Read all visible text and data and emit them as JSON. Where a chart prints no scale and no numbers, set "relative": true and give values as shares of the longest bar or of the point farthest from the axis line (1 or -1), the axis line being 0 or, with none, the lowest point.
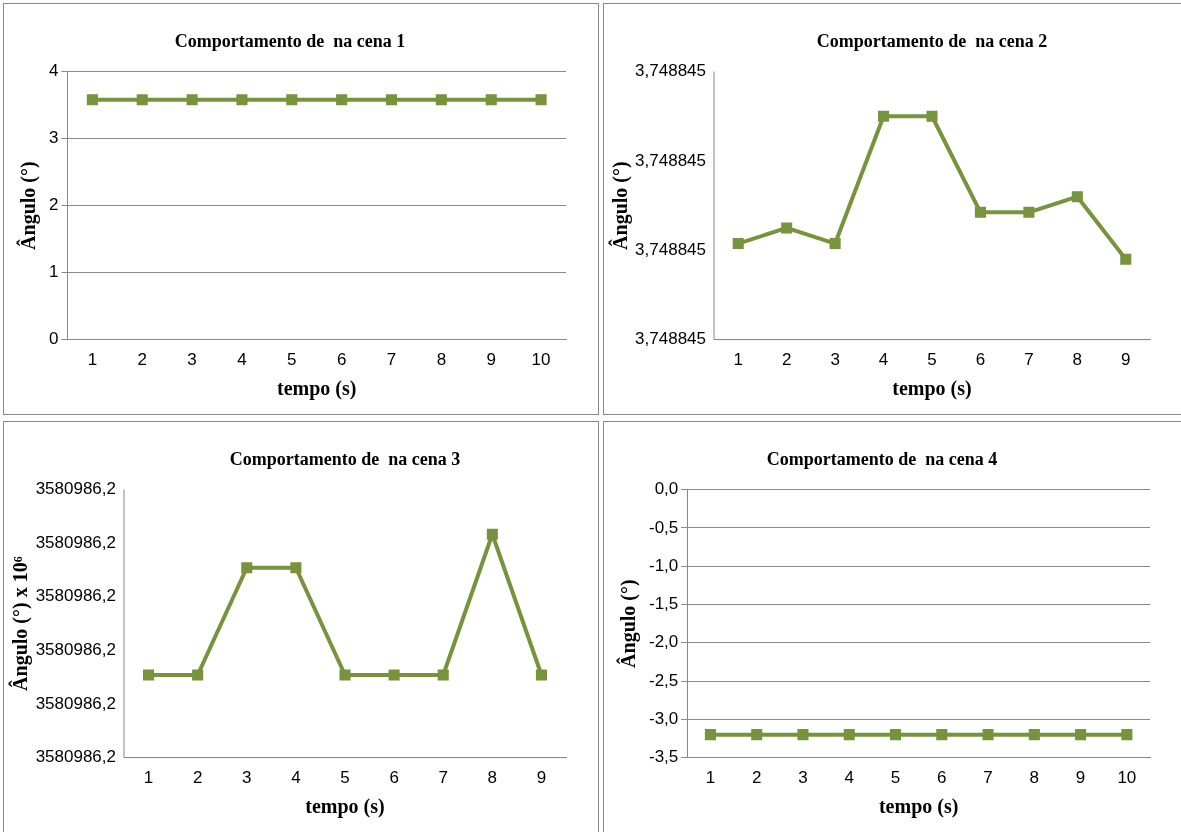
{
  "chart_data": [
    {
      "type": "line",
      "title": "Comportamento de  na cena 1",
      "xlabel": "tempo (s)",
      "ylabel": "Ângulo (°)",
      "categories": [
        "1",
        "2",
        "3",
        "4",
        "5",
        "6",
        "7",
        "8",
        "9",
        "10"
      ],
      "series": [
        {
          "color": "#77933c",
          "values": [
            3.58,
            3.58,
            3.58,
            3.58,
            3.58,
            3.58,
            3.58,
            3.58,
            3.58,
            3.58
          ]
        }
      ],
      "ylim": [
        0,
        4
      ],
      "yticks": [
        0,
        1,
        2,
        3,
        4
      ],
      "grid": "y",
      "marker": "square",
      "line_style": "solid",
      "legend": false
    },
    {
      "type": "line",
      "title": "Comportamento de  na cena 2",
      "xlabel": "tempo (s)",
      "ylabel": "Ângulo (°)",
      "categories": [
        "1",
        "2",
        "3",
        "4",
        "5",
        "6",
        "7",
        "8",
        "9"
      ],
      "series": [
        {
          "color": "#77933c",
          "values": [
            0.43,
            0.5,
            0.43,
            1,
            1,
            0.57,
            0.57,
            0.64,
            0.36
          ]
        }
      ],
      "relative": true,
      "annotations": [
        "3,748845",
        "3,748845",
        "3,748845",
        "3,748845"
      ],
      "marker": "square",
      "line_style": "solid",
      "legend": false
    },
    {
      "type": "line",
      "title": "Comportamento de  na cena 3",
      "xlabel": "tempo (s)",
      "ylabel": "Ângulo (°) x 10⁶",
      "categories": [
        "1",
        "2",
        "3",
        "4",
        "5",
        "6",
        "7",
        "8",
        "9"
      ],
      "series": [
        {
          "color": "#77933c",
          "values": [
            0.37,
            0.37,
            0.85,
            0.85,
            0.37,
            0.37,
            0.37,
            1,
            0.37
          ]
        }
      ],
      "relative": true,
      "annotations": [
        "3580986,2",
        "3580986,2",
        "3580986,2",
        "3580986,2",
        "3580986,2",
        "3580986,2"
      ],
      "marker": "square",
      "line_style": "solid",
      "legend": false
    },
    {
      "type": "line",
      "title": "Comportamento de  na cena 4",
      "xlabel": "tempo (s)",
      "ylabel": "Ângulo (°)",
      "categories": [
        "1",
        "2",
        "3",
        "4",
        "5",
        "6",
        "7",
        "8",
        "9",
        "10"
      ],
      "series": [
        {
          "color": "#77933c",
          "values": [
            -3.2,
            -3.2,
            -3.2,
            -3.2,
            -3.2,
            -3.2,
            -3.2,
            -3.2,
            -3.2,
            -3.2
          ]
        }
      ],
      "ylim": [
        -3.5,
        0
      ],
      "yticks": [
        {
          "value": 0,
          "label": "0,0"
        },
        {
          "value": -0.5,
          "label": "-0,5"
        },
        {
          "value": -1,
          "label": "-1,0"
        },
        {
          "value": -1.5,
          "label": "-1,5"
        },
        {
          "value": -2,
          "label": "-2,0"
        },
        {
          "value": -2.5,
          "label": "-2,5"
        },
        {
          "value": -3,
          "label": "-3,0"
        },
        {
          "value": -3.5,
          "label": "-3,5"
        }
      ],
      "grid": "y",
      "marker": "square",
      "line_style": "solid",
      "legend": false
    }
  ]
}
